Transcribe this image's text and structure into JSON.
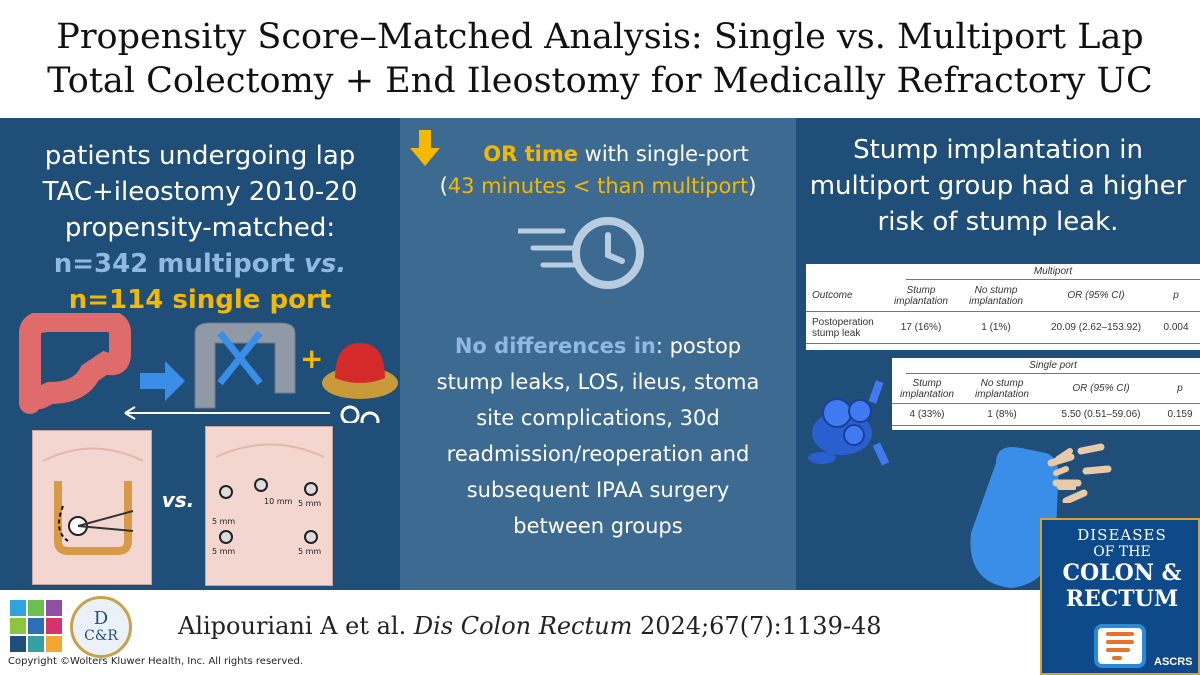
{
  "title": {
    "line1": "Propensity Score–Matched Analysis: Single vs. Multiport Lap",
    "line2": "Total Colectomy + End Ileostomy for Medically Refractory UC"
  },
  "left": {
    "line1": "patients undergoing lap",
    "line2": "TAC+ileostomy 2010-20",
    "line3": "propensity-matched:",
    "multiport": "n=342 multiport",
    "vs": "vs.",
    "singleport": "n=114 single port",
    "plus": "+",
    "vs2": "vs.",
    "ports": {
      "p10": "10 mm",
      "p5a": "5 mm",
      "p5b": "5 mm",
      "p5c": "5 mm",
      "p5d": "5 mm"
    }
  },
  "middle": {
    "highlight": "OR time",
    "rest": " with single-port",
    "paren_open": "(",
    "detail": "43 minutes < than multiport",
    "paren_close": ")",
    "no_diff_label": "No differences in",
    "no_diff_text": ": postop stump leaks, LOS, ileus, stoma site complications, 30d readmission/reoperation and subsequent IPAA surgery between groups"
  },
  "right": {
    "text": "Stump implantation in multiport group had a higher risk of stump leak."
  },
  "table_multiport": {
    "group": "Multiport",
    "headers": [
      "Outcome",
      "Stump implantation",
      "No stump implantation",
      "OR (95% CI)",
      "p"
    ],
    "row_label": "Postoperation stump leak",
    "values": [
      "17 (16%)",
      "1 (1%)",
      "20.09 (2.62–153.92)",
      "0.004"
    ]
  },
  "table_singleport": {
    "group": "Single port",
    "headers": [
      "Stump implantation",
      "No stump implantation",
      "OR (95% CI)",
      "p"
    ],
    "values": [
      "4 (33%)",
      "1 (8%)",
      "5.50 (0.51–59.06)",
      "0.159"
    ]
  },
  "citation": {
    "authors": "Alipouriani A et al.",
    "journal": "Dis Colon Rectum",
    "ref": "2024;67(7):1139-48"
  },
  "copyright": "Copyright ©Wolters Kluwer Health, Inc. All rights reserved.",
  "logo_dcr": {
    "top": "D",
    "bottom": "C&R"
  },
  "journal_badge": {
    "line1": "DISEASES",
    "line2": "OF THE",
    "line3": "COLON &",
    "line4": "RECTUM",
    "org": "ASCRS"
  },
  "colors": {
    "panel_dark": "#1f4e79",
    "panel_mid": "#3d6a91",
    "gold": "#f5b800",
    "light_blue": "#8fb9e0",
    "icon_blue": "#3b8ee8"
  }
}
